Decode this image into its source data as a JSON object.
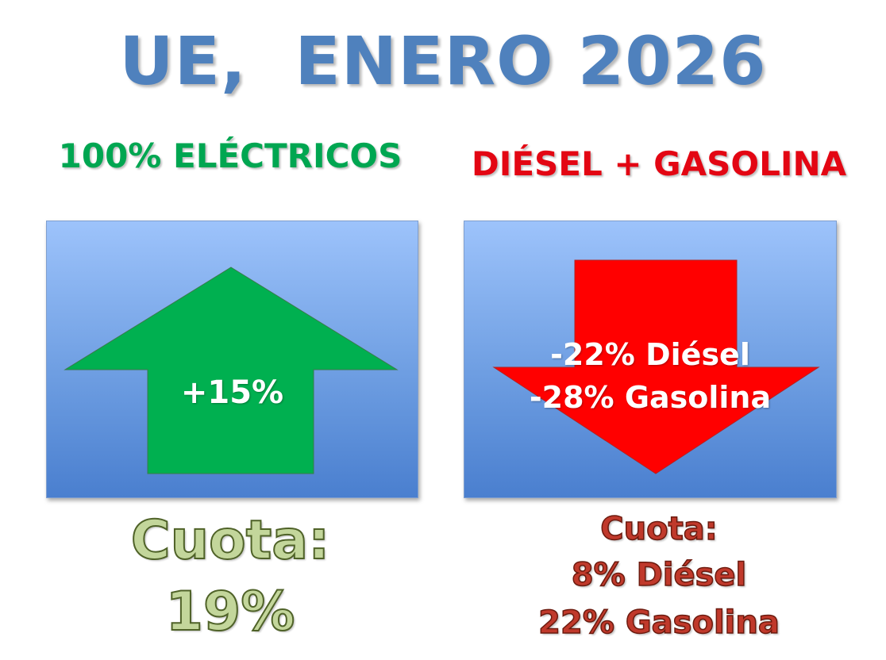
{
  "title": "UE,  ENERO 2026",
  "left": {
    "heading": "100% ELÉCTRICOS",
    "arrow_label": "+15%",
    "arrow_color": "#00b050",
    "quota_label": "Cuota:",
    "quota_value": "19%"
  },
  "right": {
    "heading": "DIÉSEL + GASOLINA",
    "arrow_label_1": "-22% Diésel",
    "arrow_label_2": "-28% Gasolina",
    "arrow_color": "#ff0000",
    "quota_label": "Cuota:",
    "quota_line_1": "8% Diésel",
    "quota_line_2": "22% Gasolina"
  }
}
